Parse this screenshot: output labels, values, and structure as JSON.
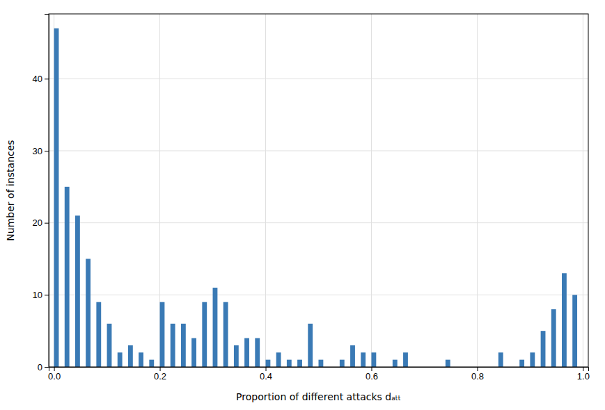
{
  "chart_data": {
    "type": "histogram",
    "xlabel": "Proportion of different attacks dₐₜₜ",
    "ylabel": "Number of instances",
    "color": "#3a7ab5",
    "bins": [
      0.0,
      0.01,
      0.02,
      0.03,
      0.04,
      0.05,
      0.06,
      0.07,
      0.08,
      0.09,
      0.1,
      0.11,
      0.12,
      0.13,
      0.14,
      0.15,
      0.16,
      0.17,
      0.18,
      0.19,
      0.2,
      0.21,
      0.22,
      0.23,
      0.24,
      0.25,
      0.26,
      0.27,
      0.28,
      0.29,
      0.3,
      0.31,
      0.32,
      0.33,
      0.34,
      0.35,
      0.36,
      0.37,
      0.38,
      0.39,
      0.4,
      0.41,
      0.42,
      0.43,
      0.44,
      0.45,
      0.46,
      0.47,
      0.48,
      0.49,
      0.5,
      0.51,
      0.52,
      0.53,
      0.54,
      0.55,
      0.56,
      0.57,
      0.58,
      0.59,
      0.6,
      0.61,
      0.62,
      0.63,
      0.64,
      0.65,
      0.66,
      0.67,
      0.68,
      0.69,
      0.7,
      0.71,
      0.72,
      0.73,
      0.74,
      0.75,
      0.76,
      0.77,
      0.78,
      0.79,
      0.8,
      0.81,
      0.82,
      0.83,
      0.84,
      0.85,
      0.86,
      0.87,
      0.88,
      0.89,
      0.9,
      0.91,
      0.92,
      0.93,
      0.94,
      0.95,
      0.96,
      0.97,
      0.98,
      0.99,
      1.0
    ],
    "values": [
      47,
      0,
      25,
      0,
      21,
      0,
      15,
      0,
      9,
      0,
      6,
      0,
      2,
      0,
      3,
      0,
      2,
      0,
      1,
      0,
      9,
      0,
      6,
      0,
      6,
      0,
      4,
      0,
      9,
      0,
      11,
      0,
      9,
      0,
      3,
      0,
      4,
      0,
      4,
      0,
      1,
      0,
      2,
      0,
      1,
      0,
      1,
      0,
      6,
      0,
      1,
      0,
      0,
      0,
      1,
      0,
      3,
      0,
      2,
      0,
      2,
      0,
      0,
      0,
      1,
      0,
      2,
      0,
      0,
      0,
      0,
      0,
      0,
      0,
      1,
      0,
      0,
      0,
      0,
      0,
      0,
      0,
      0,
      0,
      2,
      0,
      0,
      0,
      1,
      0,
      2,
      0,
      5,
      0,
      8,
      0,
      13,
      0,
      10,
      0
    ],
    "xlim": [
      -0.01,
      1.01
    ],
    "ylim": [
      0,
      49
    ],
    "xticks": [
      {
        "value": 0,
        "label": "0.0"
      },
      0.2,
      0.4,
      0.6,
      0.8,
      {
        "value": 1,
        "label": "1.0"
      }
    ],
    "yticks": [
      0,
      10,
      20,
      30,
      40
    ],
    "grid": true
  }
}
